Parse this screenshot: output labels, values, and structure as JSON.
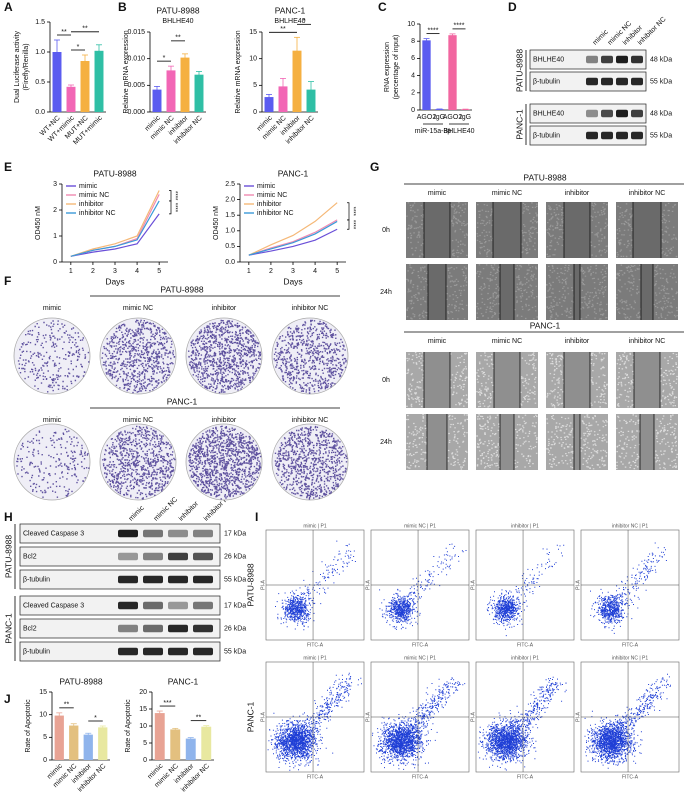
{
  "panel_labels": [
    "A",
    "B",
    "C",
    "D",
    "E",
    "F",
    "G",
    "H",
    "I",
    "J"
  ],
  "chart_data": [
    {
      "type": "bar",
      "ylabel": [
        "Dual Luciferase activity",
        "(Firefly/Renilla)"
      ],
      "categories": [
        "WT+NC",
        "WT+mimic",
        "MUT+NC",
        "MUT+mimic"
      ],
      "values": [
        1.0,
        0.42,
        0.85,
        1.02
      ],
      "errors": [
        0.2,
        0.03,
        0.1,
        0.1
      ],
      "colors": [
        "#5b5cf0",
        "#f266b5",
        "#f5b041",
        "#2fbfa5"
      ],
      "ylim": [
        0,
        1.5
      ],
      "yticks": [
        {
          "value": 0,
          "label": "0.0"
        },
        {
          "value": 0.5,
          "label": "0.5"
        },
        {
          "value": 1,
          "label": "1.0"
        },
        {
          "value": 1.5,
          "label": "1.5"
        }
      ],
      "annotations": [
        "**",
        "*",
        "**"
      ]
    },
    {
      "type": "bar",
      "title": "PATU-8988",
      "subtitle": "BHLHE40",
      "ylabel": [
        "Relative mRNA expression"
      ],
      "categories": [
        "mimic",
        "mimic NC",
        "inhibitor",
        "inhibitor NC"
      ],
      "values": [
        0.0042,
        0.0078,
        0.0102,
        0.007
      ],
      "errors": [
        0.0006,
        0.0008,
        0.0007,
        0.0006
      ],
      "colors": [
        "#5b5cf0",
        "#f266b5",
        "#f5b041",
        "#2fbfa5"
      ],
      "ylim": [
        0,
        0.015
      ],
      "yticks": [
        {
          "value": 0,
          "label": "0.000"
        },
        {
          "value": 0.005,
          "label": "0.005"
        },
        {
          "value": 0.01,
          "label": "0.010"
        },
        {
          "value": 0.015,
          "label": "0.015"
        }
      ],
      "annotations": [
        "*",
        "**"
      ]
    },
    {
      "type": "bar",
      "title": "PANC-1",
      "subtitle": "BHLHE40",
      "ylabel": [
        "Relative mRNA expression"
      ],
      "categories": [
        "mimic",
        "mimic NC",
        "inhibitor",
        "inhibitor NC"
      ],
      "values": [
        2.8,
        4.8,
        11.5,
        4.2
      ],
      "errors": [
        0.5,
        1.5,
        2.5,
        1.5
      ],
      "colors": [
        "#5b5cf0",
        "#f266b5",
        "#f5b041",
        "#2fbfa5"
      ],
      "ylim": [
        0,
        15
      ],
      "yticks": [
        0,
        5,
        10,
        15
      ],
      "annotations": [
        "**",
        "*"
      ]
    },
    {
      "type": "bar",
      "ylabel": [
        "RNA expression",
        "(percentage of input)"
      ],
      "categories": [
        "AGO2",
        "IgG",
        "AGO2",
        "IgG"
      ],
      "groups": [
        "miR-15a-3p",
        "BHLHE40"
      ],
      "values": [
        8.1,
        0.1,
        8.7,
        0.08
      ],
      "errors": [
        0.2,
        0.02,
        0.15,
        0.02
      ],
      "colors": [
        "#5b5cf0",
        "#5b5cf0",
        "#f266a0",
        "#f266a0"
      ],
      "ylim": [
        0,
        10
      ],
      "yticks": [
        0,
        2,
        4,
        6,
        8,
        10
      ],
      "annotations": [
        "****",
        "****"
      ]
    },
    {
      "type": "line",
      "title": "PATU-8988",
      "ylabel": [
        "OD450 nM"
      ],
      "xlabel": "Days",
      "x": [
        1,
        2,
        3,
        4,
        5
      ],
      "xlim": [
        0.6,
        5.4
      ],
      "xticks": [
        1,
        2,
        3,
        4,
        5
      ],
      "ylim": [
        0,
        3
      ],
      "yticks": [
        0,
        1,
        2,
        3
      ],
      "series": [
        {
          "name": "mimic",
          "color": "#6a4fd8",
          "values": [
            0.22,
            0.38,
            0.5,
            0.7,
            1.85
          ]
        },
        {
          "name": "mimic NC",
          "color": "#f08ab0",
          "values": [
            0.22,
            0.45,
            0.6,
            0.9,
            2.6
          ]
        },
        {
          "name": "inhibitor",
          "color": "#f5b877",
          "values": [
            0.22,
            0.5,
            0.7,
            1.0,
            2.75
          ]
        },
        {
          "name": "inhibitor NC",
          "color": "#3a9ad9",
          "values": [
            0.22,
            0.45,
            0.6,
            0.85,
            2.35
          ]
        }
      ],
      "annotations": [
        "****",
        "****"
      ]
    },
    {
      "type": "line",
      "title": "PANC-1",
      "ylabel": [
        "OD450 nM"
      ],
      "xlabel": "Days",
      "x": [
        1,
        2,
        3,
        4,
        5
      ],
      "xlim": [
        0.6,
        5.4
      ],
      "xticks": [
        1,
        2,
        3,
        4,
        5
      ],
      "ylim": [
        0,
        2.5
      ],
      "yticks": [
        {
          "value": 0,
          "label": "0.0"
        },
        {
          "value": 0.5,
          "label": "0.5"
        },
        {
          "value": 1,
          "label": "1.0"
        },
        {
          "value": 1.5,
          "label": "1.5"
        },
        {
          "value": 2,
          "label": "2.0"
        },
        {
          "value": 2.5,
          "label": "2.5"
        }
      ],
      "series": [
        {
          "name": "mimic",
          "color": "#6a4fd8",
          "values": [
            0.22,
            0.35,
            0.5,
            0.7,
            1.05
          ]
        },
        {
          "name": "mimic NC",
          "color": "#f08ab0",
          "values": [
            0.22,
            0.45,
            0.65,
            0.95,
            1.35
          ]
        },
        {
          "name": "inhibitor",
          "color": "#f5b877",
          "values": [
            0.22,
            0.55,
            0.85,
            1.3,
            1.9
          ]
        },
        {
          "name": "inhibitor NC",
          "color": "#3a9ad9",
          "values": [
            0.22,
            0.42,
            0.62,
            0.9,
            1.3
          ]
        }
      ],
      "annotations": [
        "****",
        "****"
      ]
    },
    {
      "type": "bar",
      "title": "PATU-8988",
      "ylabel": [
        "Rate of Apoptotic"
      ],
      "categories": [
        "mimic",
        "mimic NC",
        "inhibitor",
        "inhibitor NC"
      ],
      "values": [
        9.8,
        7.6,
        5.6,
        7.2
      ],
      "errors": [
        0.6,
        0.4,
        0.3,
        0.3
      ],
      "colors": [
        "#e8a394",
        "#e3c07f",
        "#8fb4ec",
        "#e8e8a0"
      ],
      "ylim": [
        0,
        15
      ],
      "yticks": [
        0,
        5,
        10,
        15
      ],
      "annotations": [
        "**",
        "*"
      ]
    },
    {
      "type": "bar",
      "title": "PANC-1",
      "ylabel": [
        "Rate of Apoptotic"
      ],
      "categories": [
        "mimic",
        "mimic NC",
        "inhibitor",
        "inhibitor NC"
      ],
      "values": [
        13.8,
        9.0,
        6.3,
        9.8
      ],
      "errors": [
        0.6,
        0.3,
        0.3,
        0.3
      ],
      "colors": [
        "#e8a394",
        "#e3c07f",
        "#8fb4ec",
        "#e8e8a0"
      ],
      "ylim": [
        0,
        20
      ],
      "yticks": [
        0,
        5,
        10,
        15,
        20
      ],
      "annotations": [
        "***",
        "**"
      ]
    }
  ],
  "western_blot_D": {
    "lanes": [
      "mimic",
      "mimic NC",
      "inhibitor",
      "inhibitor NC"
    ],
    "groups": [
      {
        "name": "PATU-8988",
        "rows": [
          {
            "label": "BHLHE40",
            "size": "48 kDa"
          },
          {
            "label": "β-tubulin",
            "size": "55 kDa"
          }
        ]
      },
      {
        "name": "PANC-1",
        "rows": [
          {
            "label": "BHLHE40",
            "size": "48 kDa"
          },
          {
            "label": "β-tubulin",
            "size": "55 kDa"
          }
        ]
      }
    ]
  },
  "colony_F": {
    "groups": [
      "PATU-8988",
      "PANC-1"
    ],
    "lanes": [
      "mimic",
      "mimic NC",
      "inhibitor",
      "inhibitor NC"
    ]
  },
  "wound_G": {
    "groups": [
      "PATU-8988",
      "PANC-1"
    ],
    "lanes": [
      "mimic",
      "mimic NC",
      "inhibitor",
      "inhibitor NC"
    ],
    "times": [
      "0h",
      "24h"
    ]
  },
  "western_blot_H": {
    "lanes": [
      "mimic",
      "mimic NC",
      "inhibitor",
      "inhibitor NC"
    ],
    "groups": [
      {
        "name": "PATU-8988",
        "rows": [
          {
            "label": "Cleaved Caspase 3",
            "size": "17 kDa"
          },
          {
            "label": "Bcl2",
            "size": "26 kDa"
          },
          {
            "label": "β-tubulin",
            "size": "55 kDa"
          }
        ]
      },
      {
        "name": "PANC-1",
        "rows": [
          {
            "label": "Cleaved Caspase 3",
            "size": "17 kDa"
          },
          {
            "label": "Bcl2",
            "size": "26 kDa"
          },
          {
            "label": "β-tubulin",
            "size": "55 kDa"
          }
        ]
      }
    ]
  },
  "flow_I": {
    "groups": [
      "PATU-8988",
      "PANC-1"
    ],
    "headers": [
      "mimic | P1",
      "mimic NC | P1",
      "inhibitor | P1",
      "inhibitor NC | P1"
    ],
    "xlabel": "FITC-A",
    "ylabel": "PI-A"
  }
}
